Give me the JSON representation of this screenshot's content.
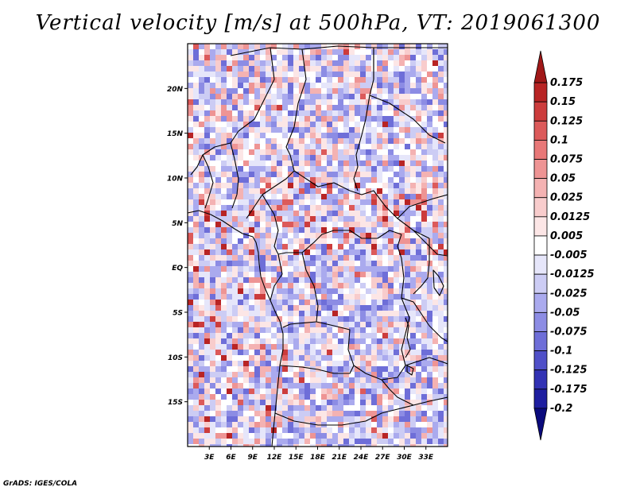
{
  "title": "Vertical velocity [m/s] at 500hPa, VT: 2019061300",
  "credit": "GrADS: IGES/COLA",
  "map": {
    "lon_range": [
      0,
      36
    ],
    "lat_range": [
      -20,
      25
    ],
    "lon_labels": [
      "3E",
      "6E",
      "9E",
      "12E",
      "15E",
      "18E",
      "21E",
      "24E",
      "27E",
      "30E",
      "33E"
    ],
    "lon_values": [
      3,
      6,
      9,
      12,
      15,
      18,
      21,
      24,
      27,
      30,
      33
    ],
    "lat_labels": [
      "20N",
      "15N",
      "10N",
      "5N",
      "EQ",
      "5S",
      "10S",
      "15S"
    ],
    "lat_values": [
      20,
      15,
      10,
      5,
      0,
      -5,
      -10,
      -15
    ]
  },
  "colorbar": {
    "labels": [
      "0.175",
      "0.15",
      "0.125",
      "0.1",
      "0.075",
      "0.05",
      "0.025",
      "0.0125",
      "0.005",
      "-0.005",
      "-0.0125",
      "-0.025",
      "-0.05",
      "-0.075",
      "-0.1",
      "-0.125",
      "-0.175",
      "-0.2"
    ],
    "colors": [
      "#a01818",
      "#b82424",
      "#cc3c3c",
      "#dc5a5a",
      "#e87878",
      "#ee9494",
      "#f4b2b2",
      "#f8cccc",
      "#fce6e6",
      "#ffffff",
      "#e6e6fa",
      "#ccccf4",
      "#aaaaee",
      "#8c8ce4",
      "#6e6ed8",
      "#5050c8",
      "#3232b4",
      "#1e1ea0",
      "#0a0a7c"
    ]
  }
}
